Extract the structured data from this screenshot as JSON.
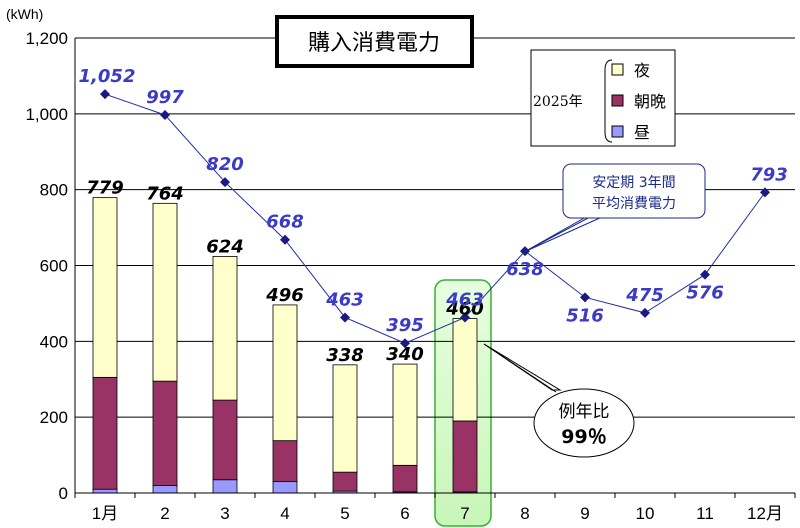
{
  "chart_data": {
    "type": "bar",
    "title": "購入消費電力",
    "ylabel": "(kWh)",
    "ylim": [
      0,
      1200
    ],
    "yticks": [
      "0",
      "200",
      "400",
      "600",
      "800",
      "1,000",
      "1,200"
    ],
    "grid": true,
    "categories": [
      "1月",
      "2",
      "3",
      "4",
      "5",
      "6",
      "7",
      "8",
      "9",
      "10",
      "11",
      "12月"
    ],
    "legend": {
      "placement": "top-right",
      "year_label": "2025年",
      "entries": [
        "夜",
        "朝晩",
        "昼"
      ]
    },
    "bar_series": [
      {
        "name": "昼",
        "color": "#9999ff",
        "values": [
          10,
          20,
          35,
          30,
          5,
          3,
          3
        ]
      },
      {
        "name": "朝晩",
        "color": "#993366",
        "values": [
          295,
          275,
          210,
          108,
          50,
          70,
          187
        ]
      },
      {
        "name": "夜",
        "color": "#ffffcc",
        "values": [
          474,
          469,
          379,
          358,
          283,
          267,
          270
        ]
      }
    ],
    "bar_totals": [
      "779",
      "764",
      "624",
      "496",
      "338",
      "340",
      "460"
    ],
    "line_series": {
      "name": "安定期 3年間 平均消費電力",
      "color": "#1f2fa8",
      "values": [
        1052,
        997,
        820,
        668,
        463,
        395,
        463,
        638,
        516,
        475,
        576,
        793
      ],
      "labels": [
        "1,052",
        "997",
        "820",
        "668",
        "463",
        "395",
        "463",
        "638",
        "516",
        "475",
        "576",
        "793"
      ]
    },
    "annotations": {
      "callout_line1": "安定期 3年間",
      "callout_line2": "平均消費電力",
      "ratio_label": "例年比",
      "ratio_value": "99％",
      "highlight_category": "7"
    }
  }
}
